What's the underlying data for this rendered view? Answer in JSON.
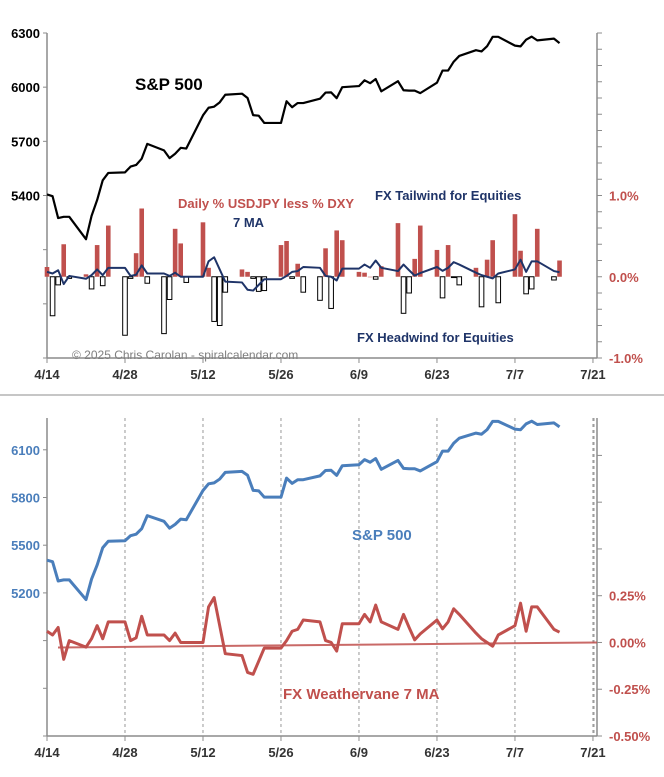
{
  "chart_data": [
    {
      "type": "bar+line",
      "panel": "top",
      "labels": {
        "sp500": "S&P 500",
        "bars": "Daily % USDJPY less % DXY",
        "ma": "7 MA",
        "tailwind": "FX Tailwind for Equities",
        "headwind": "FX Headwind for Equities",
        "copyright": "© 2025 Chris Carolan - spiralcalendar.com"
      },
      "x_tick_labels": [
        "4/14",
        "4/28",
        "5/12",
        "5/26",
        "6/9",
        "6/23",
        "7/7",
        "7/21"
      ],
      "left_axis": {
        "ylim": [
          4500,
          6300
        ],
        "tick_labels": [
          "6300",
          "6000",
          "5700",
          "5400"
        ],
        "tick_values": [
          6300,
          6000,
          5700,
          5400
        ]
      },
      "right_axis": {
        "ylim": [
          -1.0,
          3.0
        ],
        "tick_labels": [
          "1.0%",
          "0.0%",
          "-1.0%"
        ],
        "tick_values": [
          1.0,
          0.0,
          -1.0
        ]
      },
      "colors": {
        "sp500": "#000000",
        "positive_bar": "#c0504d",
        "negative_bar": "#ffffff",
        "ma": "#1f3468",
        "label_red": "#c0504d",
        "label_navy": "#1f3468",
        "copyright": "#7f7f7f"
      }
    },
    {
      "type": "line",
      "panel": "bottom",
      "labels": {
        "sp500": "S&P 500",
        "ma": "FX Weathervane 7 MA"
      },
      "x_tick_labels": [
        "4/14",
        "4/28",
        "5/12",
        "5/26",
        "6/9",
        "6/23",
        "7/7",
        "7/21"
      ],
      "left_axis": {
        "ylim": [
          4300,
          6300
        ],
        "tick_labels": [
          "6100",
          "5800",
          "5500",
          "5200"
        ],
        "tick_values": [
          6100,
          5800,
          5500,
          5200
        ]
      },
      "right_axis": {
        "ylim": [
          -0.5,
          1.2
        ],
        "tick_labels": [
          "0.25%",
          "0.00%",
          "-0.25%",
          "-0.50%"
        ],
        "tick_values": [
          0.25,
          0.0,
          -0.25,
          -0.5
        ]
      },
      "trendline": {
        "start": -0.027,
        "end": 0.0
      },
      "vertical_gridlines": "dashed",
      "colors": {
        "sp500": "#4a7ebb",
        "ma": "#c0504d",
        "trendline": "#c0504d"
      }
    }
  ],
  "series": {
    "dates": [
      "4/14",
      "4/15",
      "4/16",
      "4/17",
      "4/18",
      "4/21",
      "4/22",
      "4/23",
      "4/24",
      "4/25",
      "4/28",
      "4/29",
      "4/30",
      "5/1",
      "5/2",
      "5/5",
      "5/6",
      "5/7",
      "5/8",
      "5/9",
      "5/12",
      "5/13",
      "5/14",
      "5/15",
      "5/16",
      "5/19",
      "5/20",
      "5/21",
      "5/22",
      "5/23",
      "5/26",
      "5/27",
      "5/28",
      "5/29",
      "5/30",
      "6/2",
      "6/3",
      "6/4",
      "6/5",
      "6/6",
      "6/9",
      "6/10",
      "6/11",
      "6/12",
      "6/13",
      "6/16",
      "6/17",
      "6/18",
      "6/19",
      "6/20",
      "6/23",
      "6/24",
      "6/25",
      "6/26",
      "6/27",
      "6/30",
      "7/1",
      "7/2",
      "7/3",
      "7/4",
      "7/7",
      "7/8",
      "7/9",
      "7/10",
      "7/11",
      "7/14",
      "7/15"
    ],
    "sp500": [
      5406,
      5396,
      5275,
      5282,
      5282,
      5158,
      5287,
      5375,
      5484,
      5525,
      5528,
      5560,
      5569,
      5604,
      5686,
      5650,
      5607,
      5631,
      5664,
      5660,
      5844,
      5886,
      5892,
      5916,
      5958,
      5964,
      5940,
      5845,
      5842,
      5802,
      5802,
      5922,
      5889,
      5912,
      5912,
      5936,
      5970,
      5971,
      5939,
      6000,
      6006,
      6038,
      6022,
      6045,
      5977,
      6033,
      5983,
      5981,
      5981,
      5967,
      6025,
      6092,
      6092,
      6141,
      6173,
      6205,
      6198,
      6227,
      6279,
      6279,
      6230,
      6226,
      6263,
      6280,
      6259,
      6269,
      6244
    ],
    "daily_pct": [
      0.12,
      -0.48,
      -0.1,
      0.4,
      -0.02,
      0.03,
      -0.15,
      0.39,
      -0.11,
      0.63,
      -0.72,
      -0.02,
      0.29,
      0.84,
      -0.08,
      -0.7,
      -0.28,
      0.59,
      0.41,
      -0.07,
      0.67,
      0.11,
      -0.55,
      -0.6,
      -0.19,
      0.09,
      0.06,
      -0.02,
      -0.18,
      -0.17,
      0.39,
      0.44,
      -0.02,
      0.16,
      -0.19,
      -0.29,
      0.35,
      -0.39,
      0.57,
      0.45,
      0.06,
      0.05,
      0.0,
      -0.03,
      0.13,
      0.66,
      -0.45,
      -0.2,
      0.22,
      0.63,
      0.33,
      -0.26,
      0.39,
      -0.01,
      -0.1,
      0.11,
      -0.37,
      0.21,
      0.45,
      -0.32,
      0.77,
      0.32,
      -0.21,
      -0.15,
      0.59,
      -0.04,
      0.2
    ],
    "ma7": [
      0.06,
      0.04,
      0.08,
      -0.09,
      0.01,
      -0.025,
      0.02,
      0.09,
      0.02,
      0.11,
      0.11,
      0.01,
      0.025,
      0.14,
      0.04,
      0.04,
      0.01,
      0.05,
      0.0,
      0.0,
      0.0,
      0.19,
      0.24,
      0.09,
      -0.06,
      -0.07,
      -0.16,
      -0.17,
      -0.1,
      -0.03,
      -0.03,
      0.01,
      0.06,
      0.07,
      0.12,
      0.11,
      0.01,
      0.0,
      -0.046,
      0.1,
      0.1,
      0.15,
      0.11,
      0.2,
      0.11,
      0.07,
      0.15,
      0.08,
      0.014,
      0.046,
      0.12,
      0.073,
      0.11,
      0.18,
      0.15,
      0.05,
      0.02,
      0.0,
      -0.02,
      0.04,
      0.09,
      0.21,
      0.06,
      0.19,
      0.19,
      0.07,
      0.055
    ]
  }
}
